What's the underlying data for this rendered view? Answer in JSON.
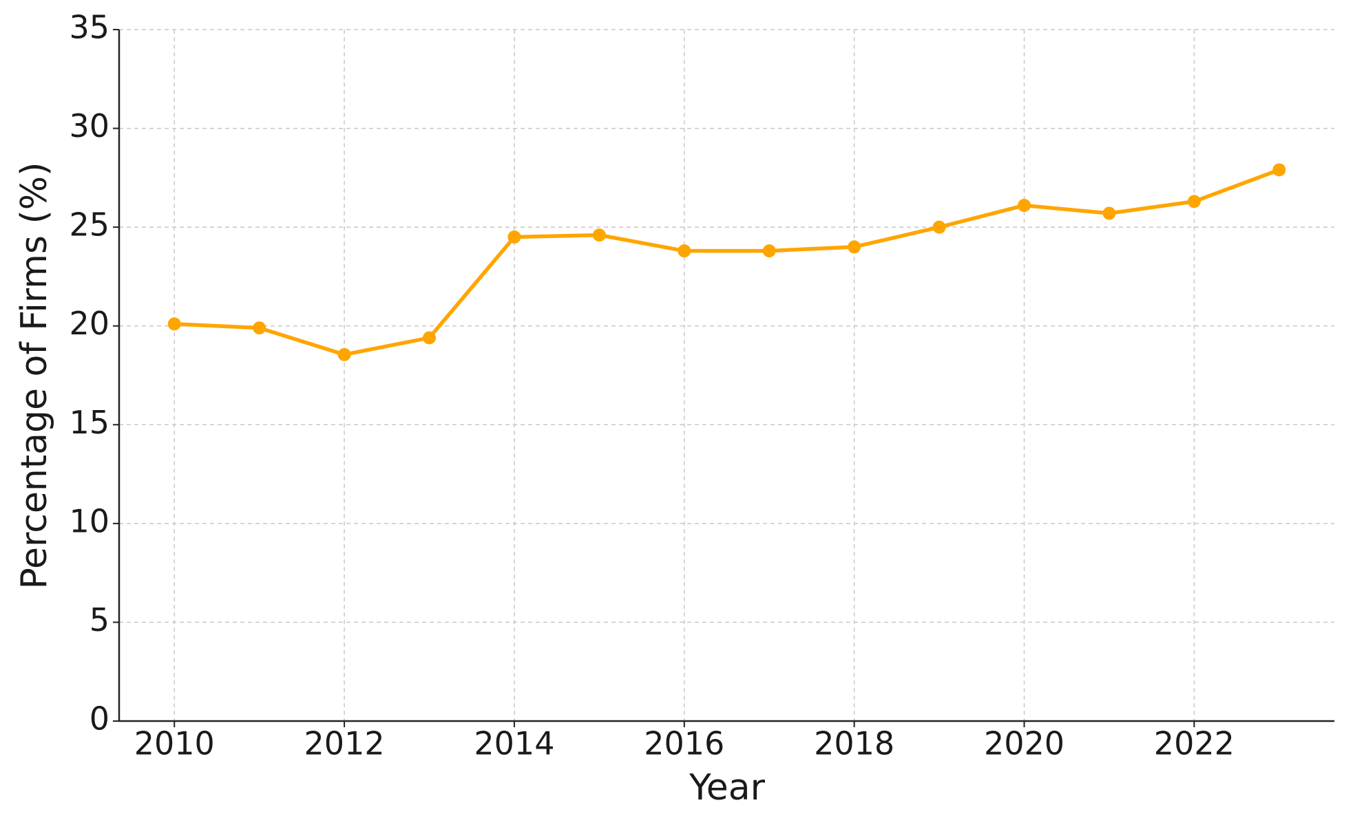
{
  "chart_data": {
    "type": "line",
    "x_label": "Year",
    "y_label": "Percentage of Firms (%)",
    "x": [
      2010,
      2011,
      2012,
      2013,
      2014,
      2015,
      2016,
      2017,
      2018,
      2019,
      2020,
      2021,
      2022,
      2023
    ],
    "series": [
      {
        "color": "#ffa500",
        "values": [
          20.1,
          19.9,
          18.55,
          19.4,
          24.5,
          24.6,
          23.8,
          23.8,
          24.0,
          25.0,
          26.1,
          25.7,
          26.3,
          27.9
        ]
      }
    ],
    "xlim": [
      2009.35,
      2023.65
    ],
    "xticks": [
      2010,
      2012,
      2014,
      2016,
      2018,
      2020,
      2022
    ],
    "ylim": [
      0,
      35
    ],
    "yticks": [
      0,
      5,
      10,
      15,
      20,
      25,
      30,
      35
    ],
    "grid": true
  }
}
